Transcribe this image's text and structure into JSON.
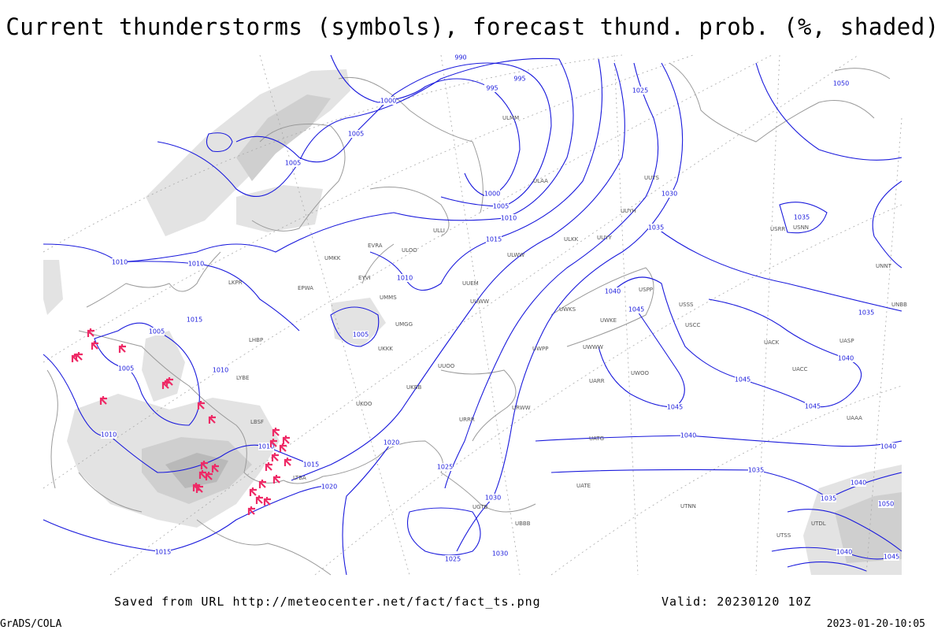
{
  "title": "Current thunderstorms (symbols), forecast thund. prob. (%, shaded)",
  "footer": {
    "saved_from": "Saved from URL http://meteocenter.net/fact/fact_ts.png",
    "valid": "Valid: 20230120 10Z",
    "credit": "GrADS/COLA",
    "timestamp": "2023-01-20-10:05"
  },
  "isobar_labels": [
    "990",
    "995",
    "995",
    "1000",
    "1005",
    "1005",
    "1000",
    "1005",
    "1010",
    "1015",
    "1025",
    "1030",
    "1035",
    "1035",
    "1040",
    "1045",
    "1050",
    "1010",
    "1010",
    "1015",
    "1005",
    "1005",
    "1010",
    "1005",
    "1010",
    "1010",
    "1010",
    "1015",
    "1020",
    "1020",
    "1025",
    "1030",
    "1025",
    "1030",
    "1015",
    "1040",
    "1045",
    "1045",
    "1045",
    "1040",
    "1035",
    "1040",
    "1035",
    "1035",
    "1040",
    "1040",
    "1045",
    "1050"
  ],
  "station_labels": [
    "ULMM",
    "ULAA",
    "UUYS",
    "UUYH",
    "ULOO",
    "UUYY",
    "ULKK",
    "ULWW",
    "UUEM",
    "UUWW",
    "UUOO",
    "URRR",
    "URWW",
    "UWPP",
    "UWKS",
    "UWKE",
    "USCC",
    "UNNT",
    "UATG",
    "UATE",
    "UTNN",
    "UAAA",
    "ULLI",
    "UMMS",
    "UMGG",
    "UKKK",
    "UKBB",
    "UKOO",
    "LBSF",
    "EPWA",
    "EYVI",
    "UMKK",
    "EVRA",
    "LKPR",
    "LHBP",
    "LYBE",
    "LTBA",
    "UGTB",
    "UBBB",
    "UTSS",
    "UTDL",
    "USPP",
    "USNN",
    "USRR",
    "USSS",
    "UWOO",
    "UWWW",
    "UARR",
    "UACC",
    "UACK",
    "UASP",
    "UNBB"
  ]
}
